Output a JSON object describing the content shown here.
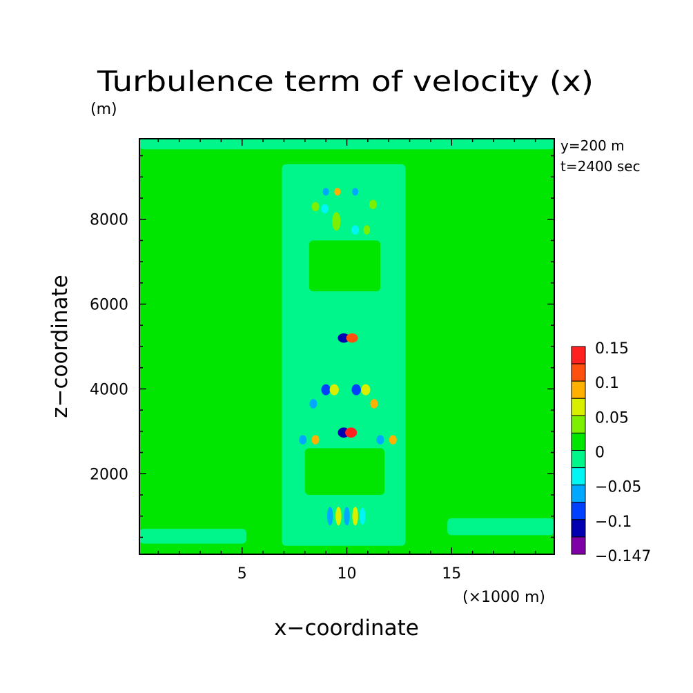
{
  "chart_data": {
    "type": "heatmap",
    "title": "Turbulence term of velocity (x)",
    "y_unit": "(m)",
    "x_unit": "(×1000 m)",
    "xlabel": "x−coordinate",
    "ylabel": "z−coordinate",
    "annotations": [
      "y=200 m",
      "t=2400 sec"
    ],
    "xlim": [
      0.1,
      19.9
    ],
    "ylim": [
      100,
      9900
    ],
    "x_ticks": [
      5,
      10,
      15
    ],
    "y_ticks": [
      2000,
      4000,
      6000,
      8000
    ],
    "colorbar": {
      "tick_labels": [
        "0.15",
        "0.1",
        "0.05",
        "0",
        "−0.05",
        "−0.1",
        "−0.147"
      ],
      "levels": [
        {
          "lo": 0.125,
          "hi": 0.15,
          "color": "#ff2020"
        },
        {
          "lo": 0.1,
          "hi": 0.125,
          "color": "#ff5010"
        },
        {
          "lo": 0.075,
          "hi": 0.1,
          "color": "#ffb000"
        },
        {
          "lo": 0.05,
          "hi": 0.075,
          "color": "#d8f000"
        },
        {
          "lo": 0.025,
          "hi": 0.05,
          "color": "#7cf000"
        },
        {
          "lo": 0.0,
          "hi": 0.025,
          "color": "#00e600"
        },
        {
          "lo": -0.025,
          "hi": 0.0,
          "color": "#00f58a"
        },
        {
          "lo": -0.05,
          "hi": -0.025,
          "color": "#00f5f5"
        },
        {
          "lo": -0.075,
          "hi": -0.05,
          "color": "#00a8ff"
        },
        {
          "lo": -0.1,
          "hi": -0.075,
          "color": "#0040ff"
        },
        {
          "lo": -0.125,
          "hi": -0.1,
          "color": "#0000b0"
        },
        {
          "lo": -0.147,
          "hi": -0.125,
          "color": "#8000a8"
        }
      ]
    },
    "background_value_color": "#00e600",
    "regions": [
      {
        "kind": "band",
        "x": [
          6.9,
          12.8
        ],
        "z": [
          300,
          9300
        ],
        "color": "#00f58a"
      },
      {
        "kind": "band",
        "x": [
          0.1,
          5.2
        ],
        "z": [
          350,
          700
        ],
        "color": "#00f58a"
      },
      {
        "kind": "band",
        "x": [
          14.8,
          19.9
        ],
        "z": [
          550,
          950
        ],
        "color": "#00f58a"
      },
      {
        "kind": "band",
        "x": [
          0.1,
          19.9
        ],
        "z": [
          9650,
          9900
        ],
        "color": "#00f58a"
      },
      {
        "kind": "band",
        "x": [
          8.2,
          11.6
        ],
        "z": [
          6300,
          7500
        ],
        "color": "#00e600"
      },
      {
        "kind": "band",
        "x": [
          8.0,
          11.8
        ],
        "z": [
          1500,
          2600
        ],
        "color": "#00e600"
      }
    ],
    "features": [
      {
        "x": 9.85,
        "z": 5200,
        "color": "#0000b0",
        "rx": 0.28,
        "rz": 110
      },
      {
        "x": 10.25,
        "z": 5200,
        "color": "#ff5010",
        "rx": 0.28,
        "rz": 110
      },
      {
        "x": 9.85,
        "z": 2970,
        "color": "#0000b0",
        "rx": 0.28,
        "rz": 120
      },
      {
        "x": 10.2,
        "z": 2970,
        "color": "#ff2020",
        "rx": 0.28,
        "rz": 120
      },
      {
        "x": 9.0,
        "z": 3980,
        "color": "#0040ff",
        "rx": 0.22,
        "rz": 130
      },
      {
        "x": 9.4,
        "z": 3980,
        "color": "#d8f000",
        "rx": 0.22,
        "rz": 130
      },
      {
        "x": 10.45,
        "z": 3980,
        "color": "#0040ff",
        "rx": 0.22,
        "rz": 130
      },
      {
        "x": 10.9,
        "z": 3980,
        "color": "#d8f000",
        "rx": 0.22,
        "rz": 130
      },
      {
        "x": 8.4,
        "z": 3650,
        "color": "#00a8ff",
        "rx": 0.18,
        "rz": 110
      },
      {
        "x": 11.3,
        "z": 3650,
        "color": "#ffb000",
        "rx": 0.18,
        "rz": 110
      },
      {
        "x": 7.9,
        "z": 2800,
        "color": "#00a8ff",
        "rx": 0.18,
        "rz": 110
      },
      {
        "x": 8.5,
        "z": 2800,
        "color": "#ffb000",
        "rx": 0.18,
        "rz": 110
      },
      {
        "x": 11.6,
        "z": 2800,
        "color": "#00a8ff",
        "rx": 0.18,
        "rz": 110
      },
      {
        "x": 12.2,
        "z": 2800,
        "color": "#ffb000",
        "rx": 0.18,
        "rz": 110
      },
      {
        "x": 9.2,
        "z": 1000,
        "color": "#00a8ff",
        "rx": 0.14,
        "rz": 220
      },
      {
        "x": 9.6,
        "z": 1000,
        "color": "#d8f000",
        "rx": 0.14,
        "rz": 220
      },
      {
        "x": 10.0,
        "z": 1000,
        "color": "#00a8ff",
        "rx": 0.14,
        "rz": 220
      },
      {
        "x": 10.4,
        "z": 1000,
        "color": "#d8f000",
        "rx": 0.14,
        "rz": 220
      },
      {
        "x": 10.75,
        "z": 1000,
        "color": "#00f5f5",
        "rx": 0.14,
        "rz": 200
      },
      {
        "x": 9.0,
        "z": 8650,
        "color": "#00a8ff",
        "rx": 0.15,
        "rz": 90
      },
      {
        "x": 9.55,
        "z": 8650,
        "color": "#ffb000",
        "rx": 0.15,
        "rz": 90
      },
      {
        "x": 10.4,
        "z": 8650,
        "color": "#00a8ff",
        "rx": 0.15,
        "rz": 90
      },
      {
        "x": 8.5,
        "z": 8300,
        "color": "#7cf000",
        "rx": 0.18,
        "rz": 110
      },
      {
        "x": 11.25,
        "z": 8350,
        "color": "#7cf000",
        "rx": 0.18,
        "rz": 110
      },
      {
        "x": 8.95,
        "z": 8250,
        "color": "#00f5f5",
        "rx": 0.18,
        "rz": 110
      },
      {
        "x": 10.95,
        "z": 7750,
        "color": "#7cf000",
        "rx": 0.16,
        "rz": 110
      },
      {
        "x": 9.5,
        "z": 7950,
        "color": "#7cf000",
        "rx": 0.2,
        "rz": 220
      },
      {
        "x": 10.4,
        "z": 7750,
        "color": "#00f5f5",
        "rx": 0.18,
        "rz": 110
      }
    ]
  }
}
